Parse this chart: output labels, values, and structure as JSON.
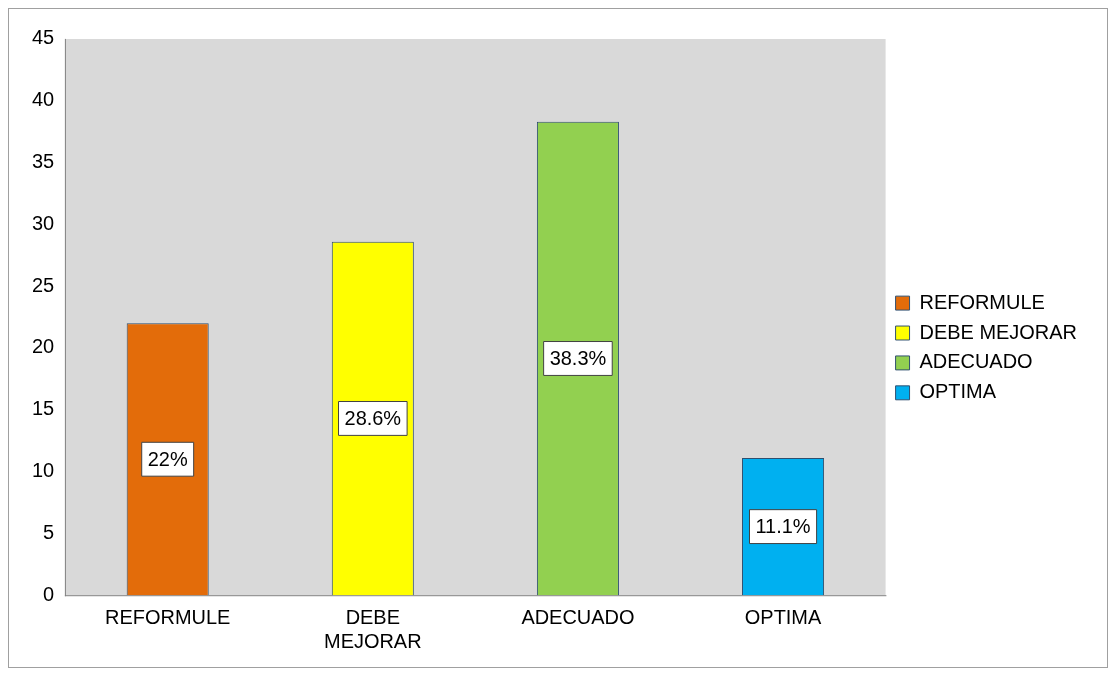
{
  "chart_data": {
    "type": "bar",
    "categories": [
      "REFORMULE",
      "DEBE MEJORAR",
      "ADECUADO",
      "OPTIMA"
    ],
    "series": [
      {
        "name": "REFORMULE",
        "color": "#e36c0a",
        "values": [
          22,
          null,
          null,
          null
        ],
        "value_labels": [
          "22%",
          null,
          null,
          null
        ]
      },
      {
        "name": "DEBE MEJORAR",
        "color": "#ffff00",
        "values": [
          null,
          28.6,
          null,
          null
        ],
        "value_labels": [
          null,
          "28.6%",
          null,
          null
        ]
      },
      {
        "name": "ADECUADO",
        "color": "#92d050",
        "values": [
          null,
          null,
          38.3,
          null
        ],
        "value_labels": [
          null,
          null,
          "38.3%",
          null
        ]
      },
      {
        "name": "OPTIMA",
        "color": "#00b0f0",
        "values": [
          null,
          null,
          null,
          11.1
        ],
        "value_labels": [
          null,
          null,
          null,
          "11.1%"
        ]
      }
    ],
    "ylim": [
      0,
      45
    ],
    "yticks": [
      0,
      5,
      10,
      15,
      20,
      25,
      30,
      35,
      40,
      45
    ],
    "grid": false,
    "legend": "right"
  }
}
